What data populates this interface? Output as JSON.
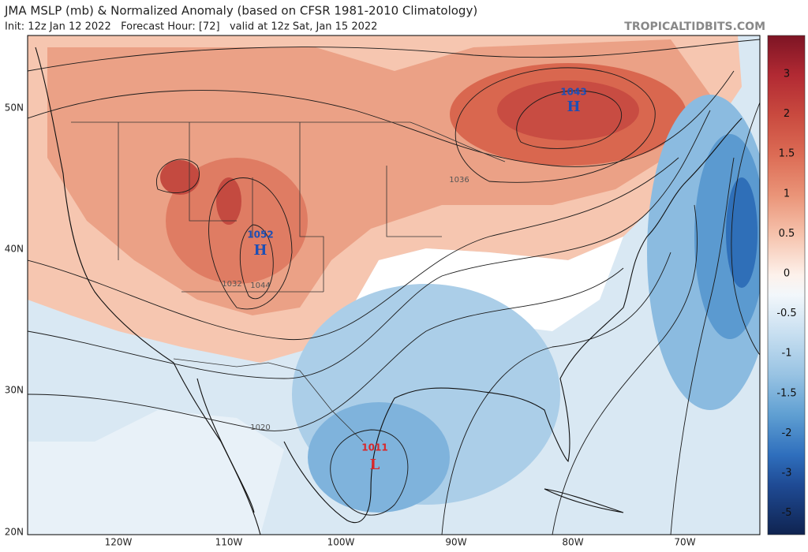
{
  "header": {
    "title": "JMA MSLP (mb) & Normalized Anomaly (based on CFSR 1981-2010 Climatology)",
    "subtitle": "Init: 12z Jan 12 2022   Forecast Hour: [72]   valid at 12z Sat, Jan 15 2022",
    "credit": "TROPICALTIDBITS.COM"
  },
  "map": {
    "lat_labels": [
      "50N",
      "40N",
      "30N",
      "20N"
    ],
    "lon_labels": [
      "120W",
      "110W",
      "100W",
      "90W",
      "80W",
      "70W"
    ],
    "centers": [
      {
        "pressure": 1052,
        "symbol": "H"
      },
      {
        "pressure": 1043,
        "symbol": "H"
      },
      {
        "pressure": 1011,
        "symbol": "L"
      }
    ],
    "contour_labels": [
      1036,
      1032,
      1044,
      1020
    ]
  },
  "colorbar": {
    "labels": [
      3,
      2,
      1.5,
      1,
      0.5,
      0,
      -0.5,
      -1,
      -1.5,
      -2,
      -3,
      -5
    ]
  }
}
